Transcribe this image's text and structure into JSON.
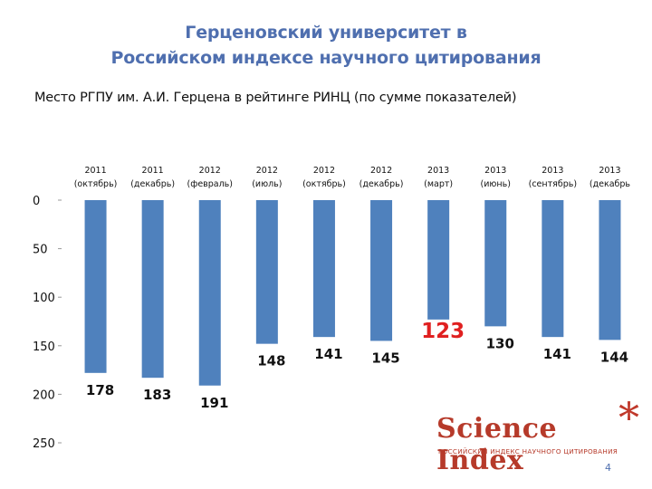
{
  "slide": {
    "title_line1": "Герценовский университет в",
    "title_line2": "Российском индексе научного цитирования",
    "subtitle": "Место РГПУ им. А.И. Герцена в рейтинге РИНЦ (по сумме показателей)",
    "page_number": "4"
  },
  "logo": {
    "name": "Science Index",
    "star": "*",
    "tagline": "РОССИЙСКИЙ ИНДЕКС НАУЧНОГО ЦИТИРОВАНИЯ"
  },
  "chart_data": {
    "type": "bar",
    "orientation": "vertical",
    "y_reversed": true,
    "title": "Место РГПУ им. А.И. Герцена в рейтинге РИНЦ (по сумме показателей)",
    "categories": [
      [
        "2011",
        "(октябрь)"
      ],
      [
        "2011",
        "(декабрь)"
      ],
      [
        "2012",
        "(февраль)"
      ],
      [
        "2012",
        "(июль)"
      ],
      [
        "2012",
        "(октябрь)"
      ],
      [
        "2012",
        "(декабрь)"
      ],
      [
        "2013",
        "(март)"
      ],
      [
        "2013",
        "(июнь)"
      ],
      [
        "2013",
        "(сентябрь)"
      ],
      [
        "2013",
        "(декабрь"
      ]
    ],
    "values": [
      178,
      183,
      191,
      148,
      141,
      145,
      123,
      130,
      141,
      144
    ],
    "highlight_index": 6,
    "bar_color": "#4f81bd",
    "highlight_label_color": "#e02020",
    "label_color": "#111111",
    "ylim": [
      0,
      250
    ],
    "yticks": [
      0,
      50,
      100,
      150,
      200,
      250
    ],
    "xlabel": "",
    "ylabel": "",
    "grid": false,
    "legend": false
  }
}
